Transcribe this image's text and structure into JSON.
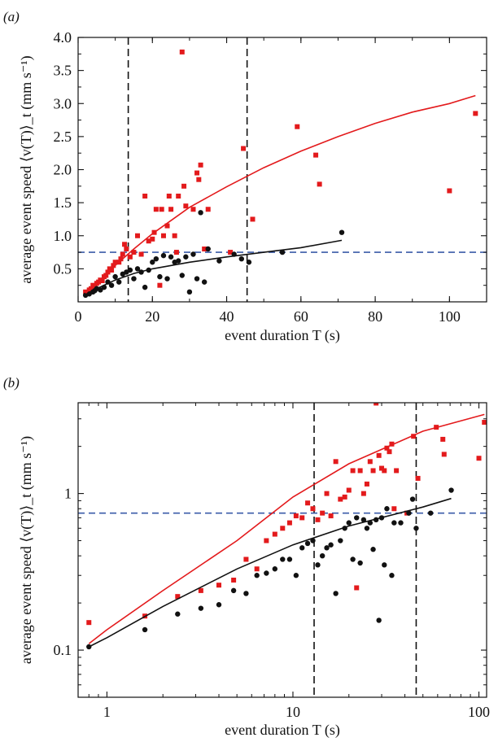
{
  "chart_data": [
    {
      "panel_label": "(a)",
      "type": "scatter",
      "xlabel": "event duration T (s)",
      "ylabel": "average event speed ⟨v(T)⟩_t (mm s⁻¹)",
      "xscale": "linear",
      "yscale": "linear",
      "xlim": [
        0,
        110
      ],
      "ylim": [
        0,
        4.0
      ],
      "xticks": [
        0,
        20,
        40,
        60,
        80,
        100
      ],
      "yticks": [
        0.5,
        1.0,
        1.5,
        2.0,
        2.5,
        3.0,
        3.5,
        4.0
      ],
      "ytick_labels": [
        "0.5",
        "1.0",
        "1.5",
        "2.0",
        "2.5",
        "3.0",
        "3.5",
        "4.0"
      ],
      "grid": false,
      "hlines": [
        {
          "y": 0.75,
          "color": "#3a5ba8",
          "style": "dashed"
        }
      ],
      "vlines": [
        {
          "x": 13.5,
          "color": "#111111",
          "style": "dashed"
        },
        {
          "x": 45.5,
          "color": "#111111",
          "style": "dashed"
        }
      ],
      "series": [
        {
          "marker": "square",
          "color": "#e31a1c",
          "points": [
            [
              2,
              0.15
            ],
            [
              3,
              0.18
            ],
            [
              3.5,
              0.2
            ],
            [
              4,
              0.25
            ],
            [
              4.5,
              0.22
            ],
            [
              5,
              0.28
            ],
            [
              5.5,
              0.3
            ],
            [
              6,
              0.33
            ],
            [
              6.5,
              0.32
            ],
            [
              7,
              0.38
            ],
            [
              7.5,
              0.4
            ],
            [
              8,
              0.45
            ],
            [
              8.5,
              0.5
            ],
            [
              9,
              0.48
            ],
            [
              9.5,
              0.55
            ],
            [
              10,
              0.6
            ],
            [
              11,
              0.6
            ],
            [
              11.5,
              0.65
            ],
            [
              12,
              0.72
            ],
            [
              12.5,
              0.87
            ],
            [
              13,
              0.8
            ],
            [
              14,
              0.68
            ],
            [
              15,
              0.75
            ],
            [
              16,
              1.0
            ],
            [
              17,
              0.72
            ],
            [
              18,
              1.6
            ],
            [
              19,
              0.92
            ],
            [
              20,
              0.95
            ],
            [
              20.5,
              1.05
            ],
            [
              21,
              1.4
            ],
            [
              22,
              0.25
            ],
            [
              22.5,
              1.4
            ],
            [
              23,
              1.0
            ],
            [
              24,
              1.15
            ],
            [
              24.5,
              1.6
            ],
            [
              25,
              1.4
            ],
            [
              26,
              1.0
            ],
            [
              26.5,
              0.75
            ],
            [
              27,
              1.6
            ],
            [
              28,
              3.78
            ],
            [
              28.5,
              1.75
            ],
            [
              29,
              1.45
            ],
            [
              31,
              1.4
            ],
            [
              32,
              1.95
            ],
            [
              32.5,
              1.85
            ],
            [
              33,
              2.07
            ],
            [
              34,
              0.8
            ],
            [
              35,
              1.4
            ],
            [
              41,
              0.75
            ],
            [
              44.5,
              2.32
            ],
            [
              47,
              1.25
            ],
            [
              59,
              2.65
            ],
            [
              64,
              2.22
            ],
            [
              65,
              1.78
            ],
            [
              100,
              1.68
            ],
            [
              107,
              2.85
            ]
          ]
        },
        {
          "marker": "circle",
          "color": "#111111",
          "points": [
            [
              2,
              0.1
            ],
            [
              3,
              0.12
            ],
            [
              4,
              0.15
            ],
            [
              4.5,
              0.17
            ],
            [
              5,
              0.2
            ],
            [
              6,
              0.18
            ],
            [
              7,
              0.22
            ],
            [
              8,
              0.3
            ],
            [
              9,
              0.25
            ],
            [
              10,
              0.38
            ],
            [
              11,
              0.3
            ],
            [
              12,
              0.42
            ],
            [
              13,
              0.45
            ],
            [
              14,
              0.48
            ],
            [
              15,
              0.35
            ],
            [
              16,
              0.5
            ],
            [
              17,
              0.45
            ],
            [
              18,
              0.22
            ],
            [
              19,
              0.48
            ],
            [
              20,
              0.6
            ],
            [
              21,
              0.65
            ],
            [
              22,
              0.38
            ],
            [
              23,
              0.7
            ],
            [
              24,
              0.35
            ],
            [
              25,
              0.68
            ],
            [
              26,
              0.6
            ],
            [
              27,
              0.62
            ],
            [
              28,
              0.4
            ],
            [
              29,
              0.68
            ],
            [
              30,
              0.15
            ],
            [
              31,
              0.72
            ],
            [
              32,
              0.35
            ],
            [
              33,
              1.35
            ],
            [
              34,
              0.3
            ],
            [
              35,
              0.8
            ],
            [
              38,
              0.62
            ],
            [
              42,
              0.72
            ],
            [
              44,
              0.65
            ],
            [
              46,
              0.6
            ],
            [
              55,
              0.75
            ],
            [
              71,
              1.05
            ]
          ]
        },
        {
          "type": "line",
          "color": "#e31a1c",
          "points": [
            [
              2,
              0.13
            ],
            [
              5,
              0.28
            ],
            [
              10,
              0.55
            ],
            [
              15,
              0.8
            ],
            [
              20,
              1.03
            ],
            [
              30,
              1.43
            ],
            [
              40,
              1.74
            ],
            [
              50,
              2.03
            ],
            [
              60,
              2.28
            ],
            [
              70,
              2.5
            ],
            [
              80,
              2.7
            ],
            [
              90,
              2.87
            ],
            [
              100,
              3.0
            ],
            [
              107,
              3.12
            ]
          ]
        },
        {
          "type": "line",
          "color": "#111111",
          "points": [
            [
              2,
              0.11
            ],
            [
              5,
              0.2
            ],
            [
              10,
              0.33
            ],
            [
              15,
              0.43
            ],
            [
              20,
              0.5
            ],
            [
              30,
              0.6
            ],
            [
              40,
              0.68
            ],
            [
              50,
              0.75
            ],
            [
              60,
              0.82
            ],
            [
              71,
              0.93
            ]
          ]
        }
      ]
    },
    {
      "panel_label": "(b)",
      "type": "scatter",
      "xlabel": "event duration T (s)",
      "ylabel": "average event speed ⟨v(T)⟩_t (mm s⁻¹)",
      "xscale": "log",
      "yscale": "log",
      "xlim": [
        0.7,
        110
      ],
      "ylim": [
        0.05,
        3.8
      ],
      "xticks": [
        1,
        10,
        100
      ],
      "xtick_labels": [
        "1",
        "10",
        "100"
      ],
      "yticks": [
        0.1,
        1
      ],
      "ytick_labels": [
        "0.1",
        "1"
      ],
      "grid": false,
      "hlines": [
        {
          "y": 0.75,
          "color": "#3a5ba8",
          "style": "dashed"
        }
      ],
      "vlines": [
        {
          "x": 13,
          "color": "#111111",
          "style": "dashed"
        },
        {
          "x": 46,
          "color": "#111111",
          "style": "dashed"
        }
      ],
      "series": [
        {
          "marker": "square",
          "color": "#e31a1c",
          "points": [
            [
              0.8,
              0.15
            ],
            [
              1.6,
              0.165
            ],
            [
              2.4,
              0.22
            ],
            [
              3.2,
              0.24
            ],
            [
              4,
              0.26
            ],
            [
              4.8,
              0.28
            ],
            [
              5.6,
              0.38
            ],
            [
              6.4,
              0.33
            ],
            [
              7.2,
              0.5
            ],
            [
              8,
              0.55
            ],
            [
              8.8,
              0.6
            ],
            [
              9.6,
              0.65
            ],
            [
              10.4,
              0.72
            ],
            [
              11.2,
              0.7
            ],
            [
              12,
              0.87
            ],
            [
              12.8,
              0.8
            ],
            [
              13.6,
              0.68
            ],
            [
              14.4,
              0.75
            ],
            [
              15.2,
              1.0
            ],
            [
              16,
              0.72
            ],
            [
              17,
              1.6
            ],
            [
              18,
              0.92
            ],
            [
              19,
              0.95
            ],
            [
              20,
              1.05
            ],
            [
              21,
              1.4
            ],
            [
              22,
              0.25
            ],
            [
              23,
              1.4
            ],
            [
              24,
              1.0
            ],
            [
              25,
              1.15
            ],
            [
              26,
              1.6
            ],
            [
              27,
              1.4
            ],
            [
              28,
              3.78
            ],
            [
              29,
              1.75
            ],
            [
              30,
              1.45
            ],
            [
              31,
              1.4
            ],
            [
              32,
              1.95
            ],
            [
              33,
              1.85
            ],
            [
              34,
              2.07
            ],
            [
              35,
              0.8
            ],
            [
              36,
              1.4
            ],
            [
              41,
              0.75
            ],
            [
              44.5,
              2.32
            ],
            [
              47,
              1.25
            ],
            [
              59,
              2.65
            ],
            [
              64,
              2.22
            ],
            [
              65,
              1.78
            ],
            [
              100,
              1.68
            ],
            [
              107,
              2.85
            ]
          ]
        },
        {
          "marker": "circle",
          "color": "#111111",
          "points": [
            [
              0.8,
              0.105
            ],
            [
              1.6,
              0.135
            ],
            [
              2.4,
              0.17
            ],
            [
              3.2,
              0.185
            ],
            [
              4,
              0.195
            ],
            [
              4.8,
              0.24
            ],
            [
              5.6,
              0.23
            ],
            [
              6.4,
              0.3
            ],
            [
              7.2,
              0.31
            ],
            [
              8,
              0.33
            ],
            [
              8.8,
              0.38
            ],
            [
              9.6,
              0.38
            ],
            [
              10.4,
              0.3
            ],
            [
              11.2,
              0.45
            ],
            [
              12,
              0.48
            ],
            [
              12.8,
              0.5
            ],
            [
              13.6,
              0.35
            ],
            [
              14.4,
              0.4
            ],
            [
              15.2,
              0.45
            ],
            [
              16,
              0.47
            ],
            [
              17,
              0.23
            ],
            [
              18,
              0.5
            ],
            [
              19,
              0.6
            ],
            [
              20,
              0.65
            ],
            [
              21,
              0.38
            ],
            [
              22,
              0.7
            ],
            [
              23,
              0.36
            ],
            [
              24,
              0.68
            ],
            [
              25,
              0.6
            ],
            [
              26,
              0.65
            ],
            [
              27,
              0.44
            ],
            [
              28,
              0.68
            ],
            [
              29,
              0.155
            ],
            [
              30,
              0.7
            ],
            [
              31,
              0.35
            ],
            [
              32,
              0.8
            ],
            [
              34,
              0.3
            ],
            [
              35,
              0.65
            ],
            [
              38,
              0.65
            ],
            [
              42,
              0.75
            ],
            [
              44,
              0.92
            ],
            [
              46,
              0.6
            ],
            [
              55,
              0.75
            ],
            [
              71,
              1.05
            ]
          ]
        },
        {
          "type": "line",
          "color": "#e31a1c",
          "points": [
            [
              0.8,
              0.11
            ],
            [
              1,
              0.135
            ],
            [
              2,
              0.24
            ],
            [
              5,
              0.5
            ],
            [
              10,
              0.95
            ],
            [
              20,
              1.55
            ],
            [
              50,
              2.5
            ],
            [
              107,
              3.2
            ]
          ]
        },
        {
          "type": "line",
          "color": "#111111",
          "points": [
            [
              0.8,
              0.105
            ],
            [
              1,
              0.12
            ],
            [
              2,
              0.19
            ],
            [
              5,
              0.33
            ],
            [
              10,
              0.47
            ],
            [
              20,
              0.62
            ],
            [
              50,
              0.82
            ],
            [
              71,
              0.93
            ]
          ]
        }
      ]
    }
  ]
}
